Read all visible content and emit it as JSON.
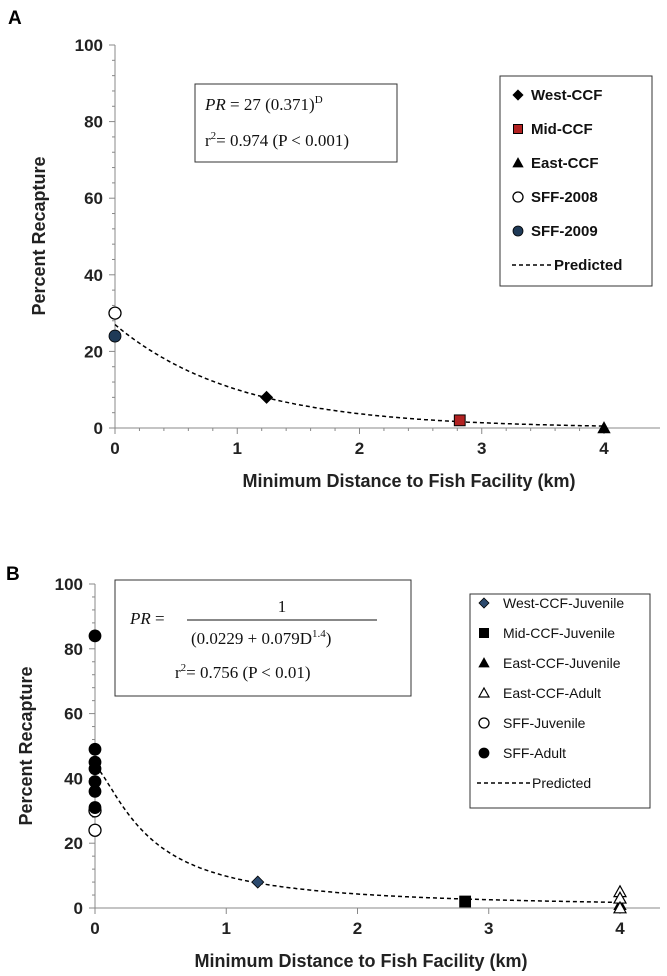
{
  "chart_data": [
    {
      "type": "scatter",
      "panel": "A",
      "xlabel": "Minimum Distance  to Fish Facility (km)",
      "ylabel": "Percent  Recapture",
      "xlim": [
        0,
        4
      ],
      "ylim": [
        0,
        100
      ],
      "x_ticks": [
        "0",
        "1",
        "2",
        "3",
        "4"
      ],
      "y_ticks": [
        "0",
        "20",
        "40",
        "60",
        "80",
        "100"
      ],
      "equation": {
        "prefix": "PR",
        "body": " = 27 (0.371)",
        "sup": "D",
        "r2_label": "r",
        "r2_sup": "2",
        "r2_rest": "= 0.974 (P < 0.001)"
      },
      "legend_position": "top-right",
      "series": [
        {
          "name": "West-CCF",
          "marker": "diamond",
          "color": "#000000",
          "x": [
            1.24
          ],
          "y": [
            8
          ]
        },
        {
          "name": "Mid-CCF",
          "marker": "square",
          "color": "#b22222",
          "x": [
            2.82
          ],
          "y": [
            2
          ]
        },
        {
          "name": "East-CCF",
          "marker": "triangle",
          "color": "#000000",
          "x": [
            4.0
          ],
          "y": [
            0
          ]
        },
        {
          "name": "SFF-2008",
          "marker": "open-circle",
          "color": "#000000",
          "x": [
            0
          ],
          "y": [
            30
          ]
        },
        {
          "name": "SFF-2009",
          "marker": "filled-circle",
          "color": "#1f3a57",
          "x": [
            0
          ],
          "y": [
            24
          ]
        },
        {
          "name": "Predicted",
          "marker": "dashed-line",
          "color": "#000000",
          "model": "27*0.371^x"
        }
      ]
    },
    {
      "type": "scatter",
      "panel": "B",
      "xlabel": "Minimum Distance to Fish Facility (km)",
      "ylabel": "Percent  Recapture",
      "xlim": [
        0,
        4
      ],
      "ylim": [
        0,
        100
      ],
      "x_ticks": [
        "0",
        "1",
        "2",
        "3",
        "4"
      ],
      "y_ticks": [
        "0",
        "20",
        "40",
        "60",
        "80",
        "100"
      ],
      "equation": {
        "lhs": "PR",
        "numerator": "1",
        "denominator": "(0.0229 + 0.079D",
        "denominator_sup": "1.4",
        "denominator_close": ")",
        "r2_label": "r",
        "r2_sup": "2",
        "r2_rest": "= 0.756 (P < 0.01)"
      },
      "legend_position": "top-right",
      "series": [
        {
          "name": "West-CCF-Juvenile",
          "marker": "diamond",
          "color": "#2c4a6e",
          "x": [
            1.24
          ],
          "y": [
            8
          ]
        },
        {
          "name": "Mid-CCF-Juvenile",
          "marker": "square",
          "color": "#000000",
          "x": [
            2.82
          ],
          "y": [
            2
          ]
        },
        {
          "name": "East-CCF-Juvenile",
          "marker": "triangle",
          "color": "#000000",
          "x": [
            4.0
          ],
          "y": [
            1
          ]
        },
        {
          "name": "East-CCF-Adult",
          "marker": "open-triangle",
          "color": "#000000",
          "x": [
            4.0,
            4.0,
            4.0
          ],
          "y": [
            5,
            3,
            0
          ]
        },
        {
          "name": "SFF-Juvenile",
          "marker": "open-circle",
          "color": "#000000",
          "x": [
            0,
            0
          ],
          "y": [
            30,
            24
          ]
        },
        {
          "name": "SFF-Adult",
          "marker": "filled-circle",
          "color": "#000000",
          "x": [
            0,
            0,
            0,
            0,
            0,
            0,
            0
          ],
          "y": [
            84,
            49,
            45,
            43,
            39,
            36,
            31
          ]
        },
        {
          "name": "Predicted",
          "marker": "dashed-line",
          "color": "#000000",
          "model": "1/(0.0229+0.079*x^1.4)"
        }
      ]
    }
  ]
}
